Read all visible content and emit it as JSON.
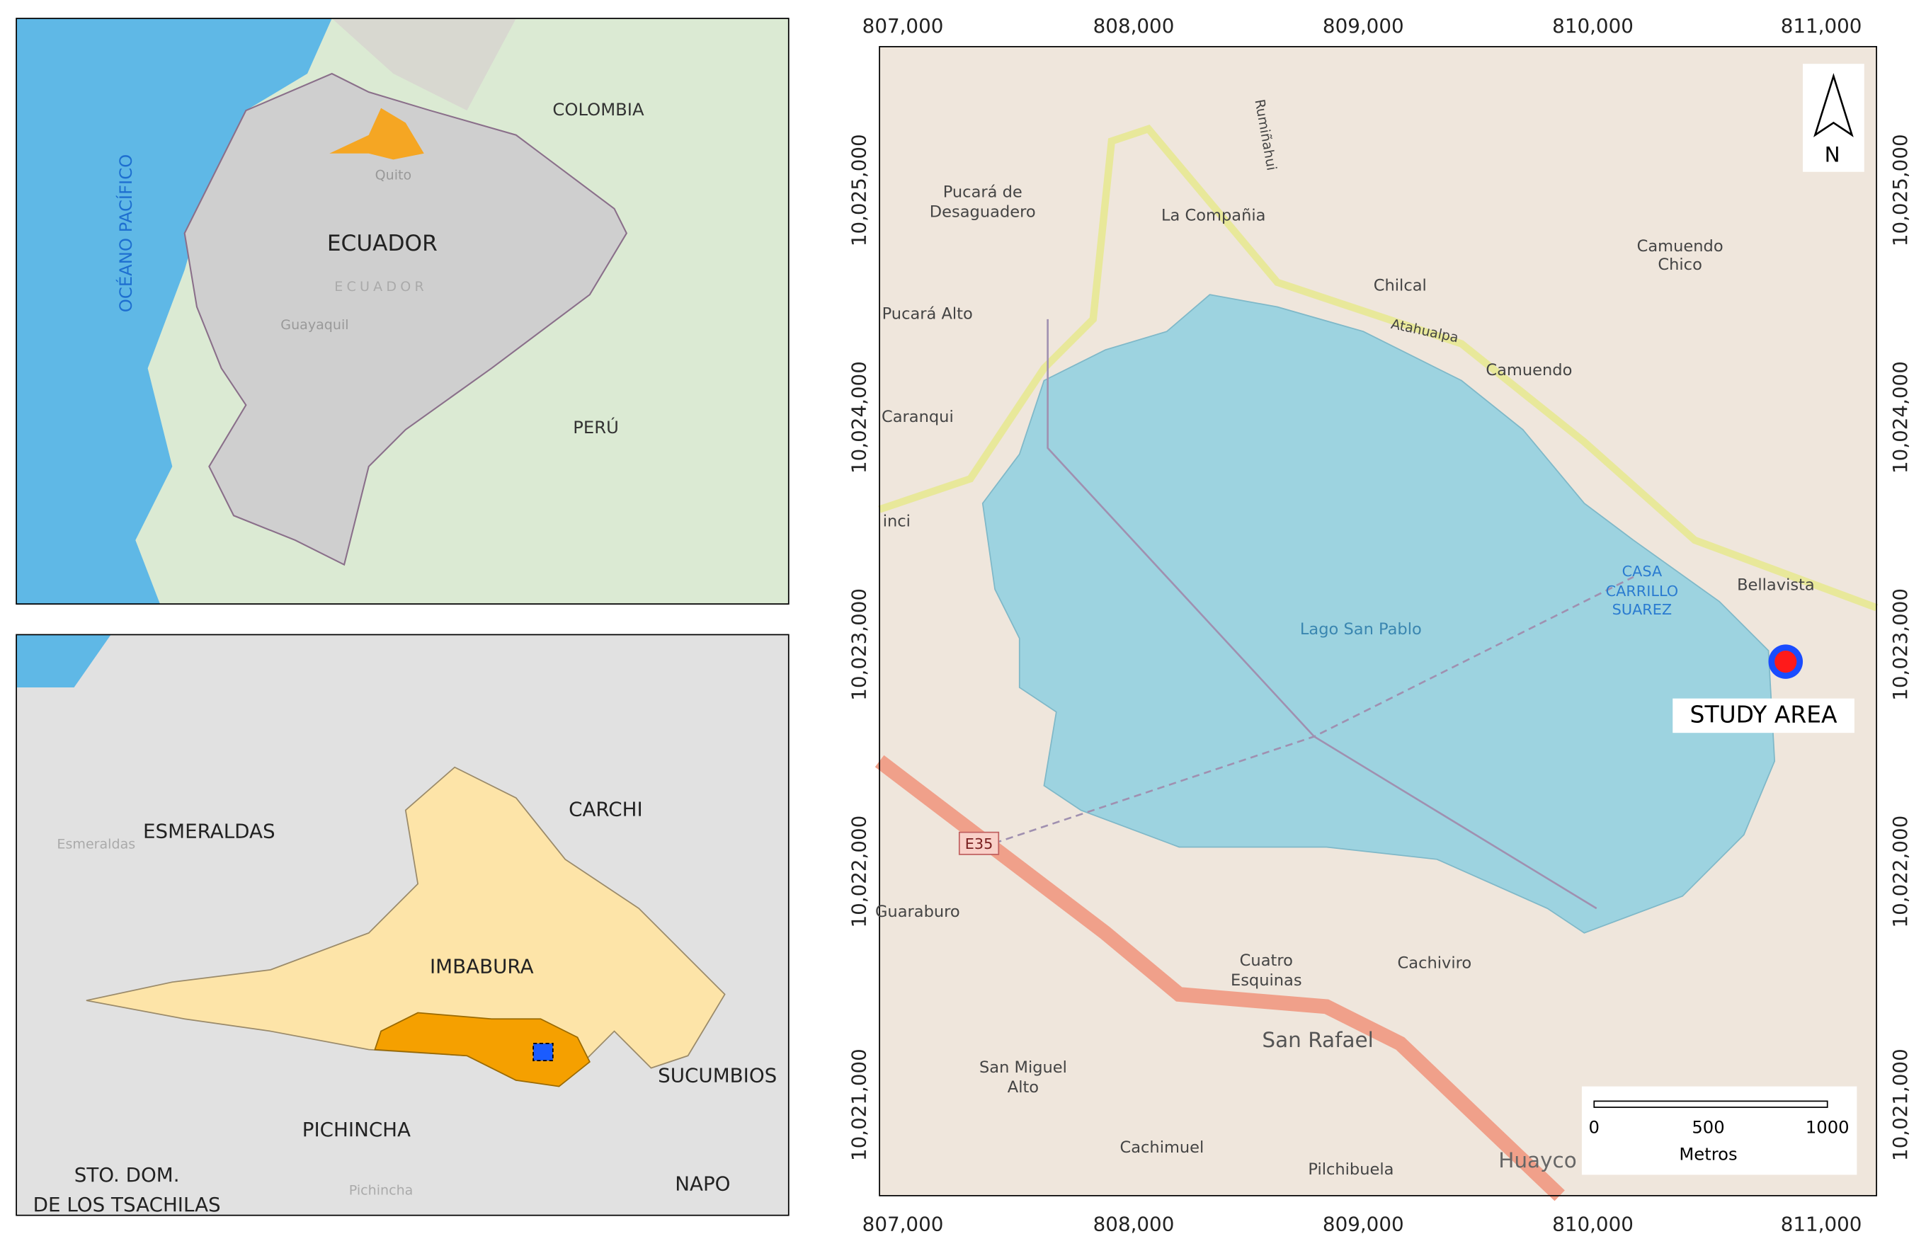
{
  "overview_map": {
    "labels": [
      "OCÉANO PACÍFICO",
      "COLOMBIA",
      "ECUADOR",
      "PERÚ",
      "Quito",
      "Guayaquil",
      "ECUADOR"
    ]
  },
  "province_map": {
    "labels": [
      "ESMERALDAS",
      "CARCHI",
      "IMBABURA",
      "SUCUMBIOS",
      "PICHINCHA",
      "STO. DOM.",
      "DE LOS TSACHILAS",
      "NAPO",
      "Esmeraldas",
      "Pichincha"
    ]
  },
  "main_map": {
    "labels": [
      "Pucará de",
      "Desaguadero",
      "La Compañia",
      "Rumiñahui",
      "Chilcal",
      "Atahualpa",
      "Camuendo",
      "Chico",
      "Camuendo",
      "Pucará Alto",
      "Caranqui",
      "inci",
      "Lago San Pablo",
      "CASA",
      "CARRILLO",
      "SUAREZ",
      "Bellavista",
      "E35",
      "Guaraburo",
      "Cuatro",
      "Esquinas",
      "Cachiviro",
      "San Rafael",
      "San Miguel",
      "Alto",
      "Cachimuel",
      "Pilchibuela",
      "Huayco"
    ],
    "study_area": "STUDY AREA",
    "x_ticks": [
      "807,000",
      "808,000",
      "809,000",
      "810,000",
      "811,000"
    ],
    "y_ticks": [
      "10,025,000",
      "10,024,000",
      "10,023,000",
      "10,022,000",
      "10,021,000"
    ],
    "north": "N",
    "scale_bar": {
      "ticks": [
        "0",
        "500",
        "1000"
      ],
      "unit": "Metros"
    }
  }
}
